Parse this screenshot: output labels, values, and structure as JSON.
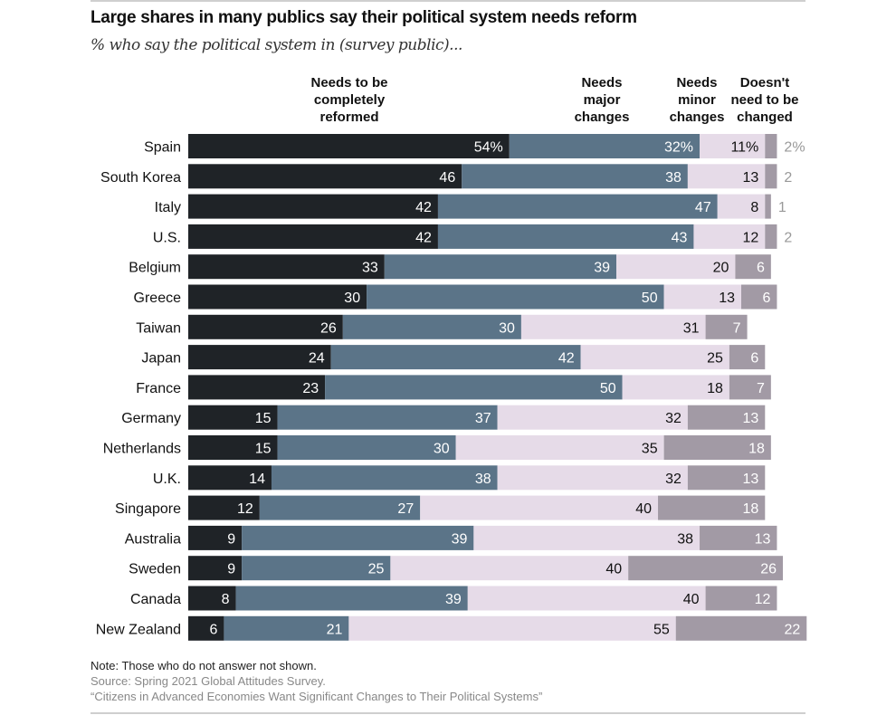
{
  "chart_data": {
    "type": "bar",
    "orientation": "horizontal",
    "stacked": true,
    "title": "Large shares in many publics say their political system needs reform",
    "subtitle": "% who say the political system in (survey public)...",
    "categories": [
      "Spain",
      "South Korea",
      "Italy",
      "U.S.",
      "Belgium",
      "Greece",
      "Taiwan",
      "Japan",
      "France",
      "Germany",
      "Netherlands",
      "U.K.",
      "Singapore",
      "Australia",
      "Sweden",
      "Canada",
      "New Zealand"
    ],
    "series": [
      {
        "name": "Needs to be completely reformed",
        "color": "#1f2327",
        "label_color": "#ffffff",
        "values": [
          54,
          46,
          42,
          42,
          33,
          30,
          26,
          24,
          23,
          15,
          15,
          14,
          12,
          9,
          9,
          8,
          6
        ]
      },
      {
        "name": "Needs major changes",
        "color": "#5b7488",
        "label_color": "#ffffff",
        "values": [
          32,
          38,
          47,
          43,
          39,
          50,
          30,
          42,
          50,
          37,
          30,
          38,
          27,
          39,
          25,
          39,
          21
        ]
      },
      {
        "name": "Needs minor changes",
        "color": "#e6dbe8",
        "label_color": "#111111",
        "values": [
          11,
          13,
          8,
          12,
          20,
          13,
          31,
          25,
          18,
          32,
          35,
          32,
          40,
          38,
          40,
          40,
          55
        ]
      },
      {
        "name": "Doesn't need to be changed",
        "color": "#a29aa5",
        "label_color": "#ffffff",
        "values": [
          2,
          2,
          1,
          2,
          6,
          6,
          7,
          6,
          7,
          13,
          18,
          13,
          18,
          13,
          26,
          12,
          22
        ]
      }
    ],
    "header_lines": [
      [
        "Needs to be",
        "completely",
        "reformed"
      ],
      [
        "Needs",
        "major",
        "changes"
      ],
      [
        "Needs",
        "minor",
        "changes"
      ],
      [
        "Doesn't",
        "need to be",
        "changed"
      ]
    ],
    "first_row_suffix": "%",
    "xlim": [
      0,
      100
    ],
    "grid": false
  },
  "notes": {
    "note": "Note: Those who do not answer not shown.",
    "source": "Source: Spring 2021 Global Attitudes Survey.",
    "report": "“Citizens in Advanced Economies Want Significant Changes to Their Political Systems”"
  }
}
